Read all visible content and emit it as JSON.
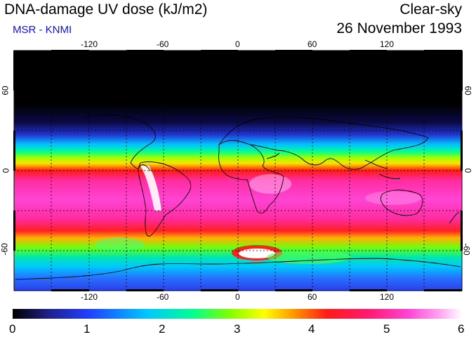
{
  "header": {
    "title": "DNA-damage UV dose (kJ/m2)",
    "subtitle": "MSR - KNMI",
    "sky_condition": "Clear-sky",
    "date": "26 November 1993"
  },
  "map": {
    "projection": "equirectangular",
    "lon_range": [
      -180,
      180
    ],
    "lat_range": [
      -90,
      90
    ],
    "lon_ticks": [
      "-120",
      "-60",
      "0",
      "60",
      "120"
    ],
    "lat_ticks": [
      "60",
      "0",
      "-60"
    ],
    "grid": "dashed, every 30 degrees"
  },
  "colorbar": {
    "labels": [
      "0",
      "1",
      "2",
      "3",
      "4",
      "5",
      "6"
    ],
    "min": 0,
    "max": 6,
    "colors": [
      "#000000",
      "#20208a",
      "#2040ff",
      "#00c8ff",
      "#00ff90",
      "#7cff00",
      "#ffff00",
      "#ff9000",
      "#ff1a1a",
      "#ff1a6e",
      "#ff44d4",
      "#ffa4f0",
      "#ffffff"
    ]
  }
}
